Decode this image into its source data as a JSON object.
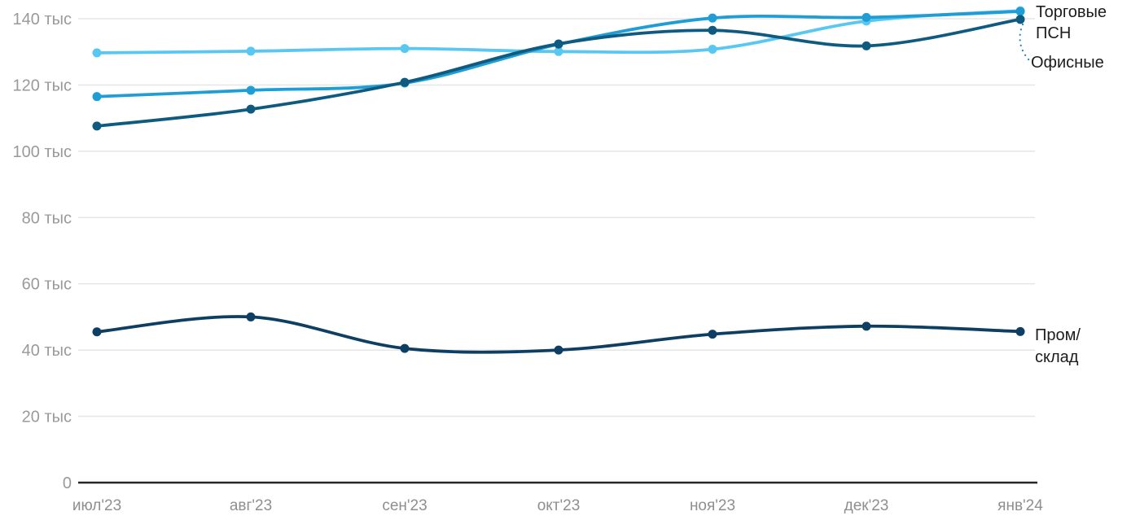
{
  "chart_data": {
    "type": "line",
    "title": "",
    "xlabel": "",
    "ylabel": "",
    "unit": "тыс",
    "x_categories": [
      "июл'23",
      "авг'23",
      "сен'23",
      "окт'23",
      "ноя'23",
      "дек'23",
      "янв'24"
    ],
    "y_ticks": [
      {
        "value": 0,
        "label": "0"
      },
      {
        "value": 20,
        "label": "20 тыс"
      },
      {
        "value": 40,
        "label": "40 тыс"
      },
      {
        "value": 60,
        "label": "60 тыс"
      },
      {
        "value": 80,
        "label": "80 тыс"
      },
      {
        "value": 100,
        "label": "100 тыс"
      },
      {
        "value": 120,
        "label": "120 тыс"
      },
      {
        "value": 140,
        "label": "140 тыс"
      }
    ],
    "ylim": [
      0,
      145
    ],
    "grid": true,
    "legend_position": "right",
    "series": [
      {
        "name": "Торговые",
        "color": "#58C8F2",
        "values": [
          129.7,
          130.2,
          131.0,
          130.1,
          130.8,
          139.3,
          142.4
        ]
      },
      {
        "name": "ПСН",
        "color": "#1F9ED6",
        "values": [
          116.5,
          118.4,
          120.6,
          132.3,
          140.2,
          140.4,
          142.2
        ]
      },
      {
        "name": "Офисные",
        "color": "#0E5A80",
        "values": [
          107.6,
          112.7,
          120.8,
          132.4,
          136.5,
          131.8,
          139.8
        ]
      },
      {
        "name": "Пром/склад",
        "color": "#0E3F63",
        "values": [
          45.5,
          50.0,
          40.5,
          40.0,
          44.8,
          47.2,
          45.6
        ]
      }
    ],
    "legend_labels": [
      "Торговые",
      "ПСН",
      "Офисные",
      "Пром/\nсклад"
    ],
    "leader_line": {
      "connects": "Офисные",
      "style": "dotted",
      "color": "#1E85B2"
    }
  },
  "colors": {
    "background": "#ffffff",
    "grid": "#e7e7e7",
    "axis": "#262626",
    "tick_text": "#9a9a9a",
    "legend_text": "#1c1c1c"
  }
}
